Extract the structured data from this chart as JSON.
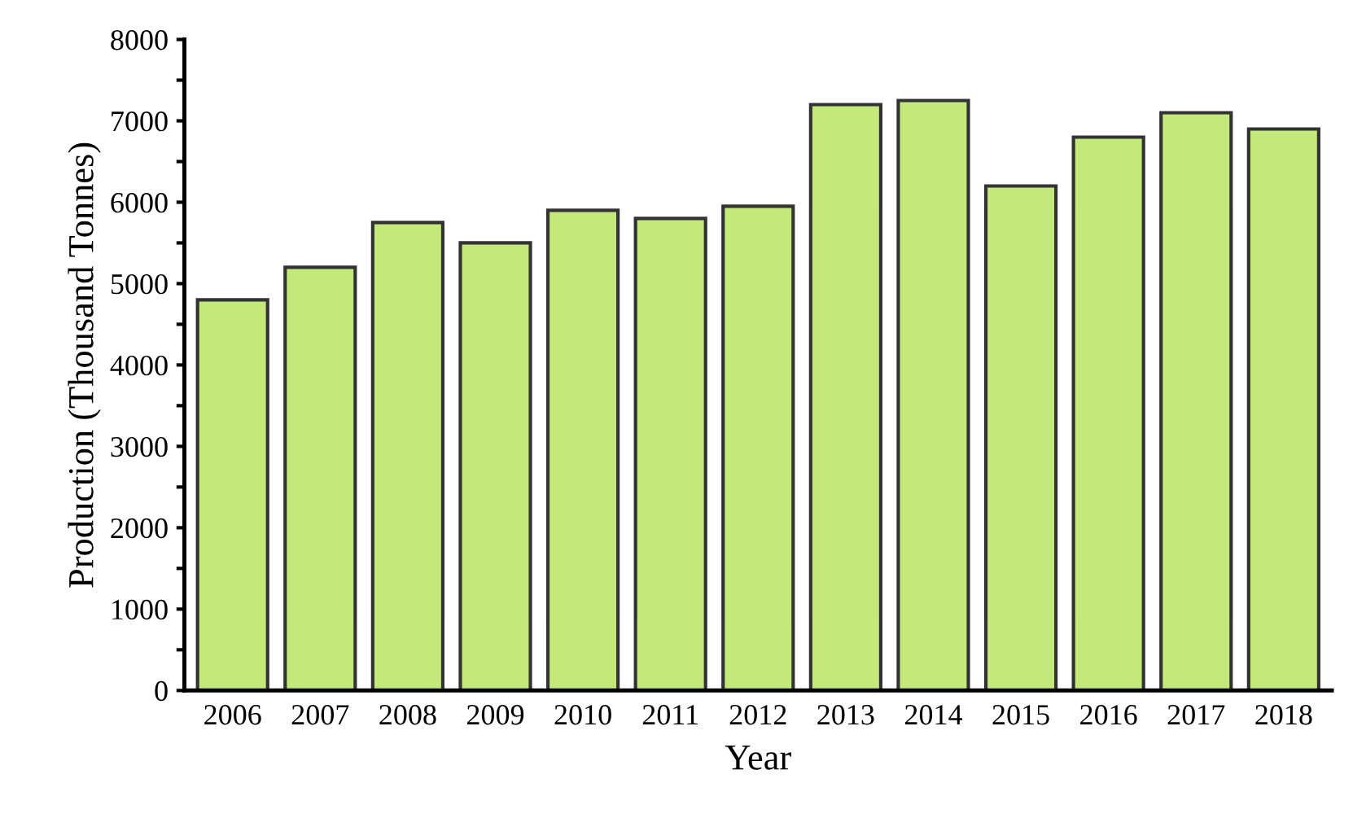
{
  "chart_data": {
    "type": "bar",
    "xlabel": "Year",
    "ylabel": "Production (Thousand Tonnes)",
    "categories": [
      "2006",
      "2007",
      "2008",
      "2009",
      "2010",
      "2011",
      "2012",
      "2013",
      "2014",
      "2015",
      "2016",
      "2017",
      "2018"
    ],
    "values": [
      4800,
      5200,
      5750,
      5500,
      5900,
      5800,
      5950,
      7200,
      7250,
      6200,
      6800,
      7100,
      6900
    ],
    "color": "#c3e97b",
    "ylim": [
      0,
      8000
    ],
    "yticks": [
      0,
      {
        "value": 500,
        "label": null
      },
      1000,
      {
        "value": 1500,
        "label": null
      },
      2000,
      {
        "value": 2500,
        "label": null
      },
      3000,
      {
        "value": 3500,
        "label": null
      },
      4000,
      {
        "value": 4500,
        "label": null
      },
      5000,
      {
        "value": 5500,
        "label": null
      },
      6000,
      {
        "value": 6500,
        "label": null
      },
      7000,
      {
        "value": 7500,
        "label": null
      },
      8000
    ],
    "grid": false,
    "legend": false
  }
}
